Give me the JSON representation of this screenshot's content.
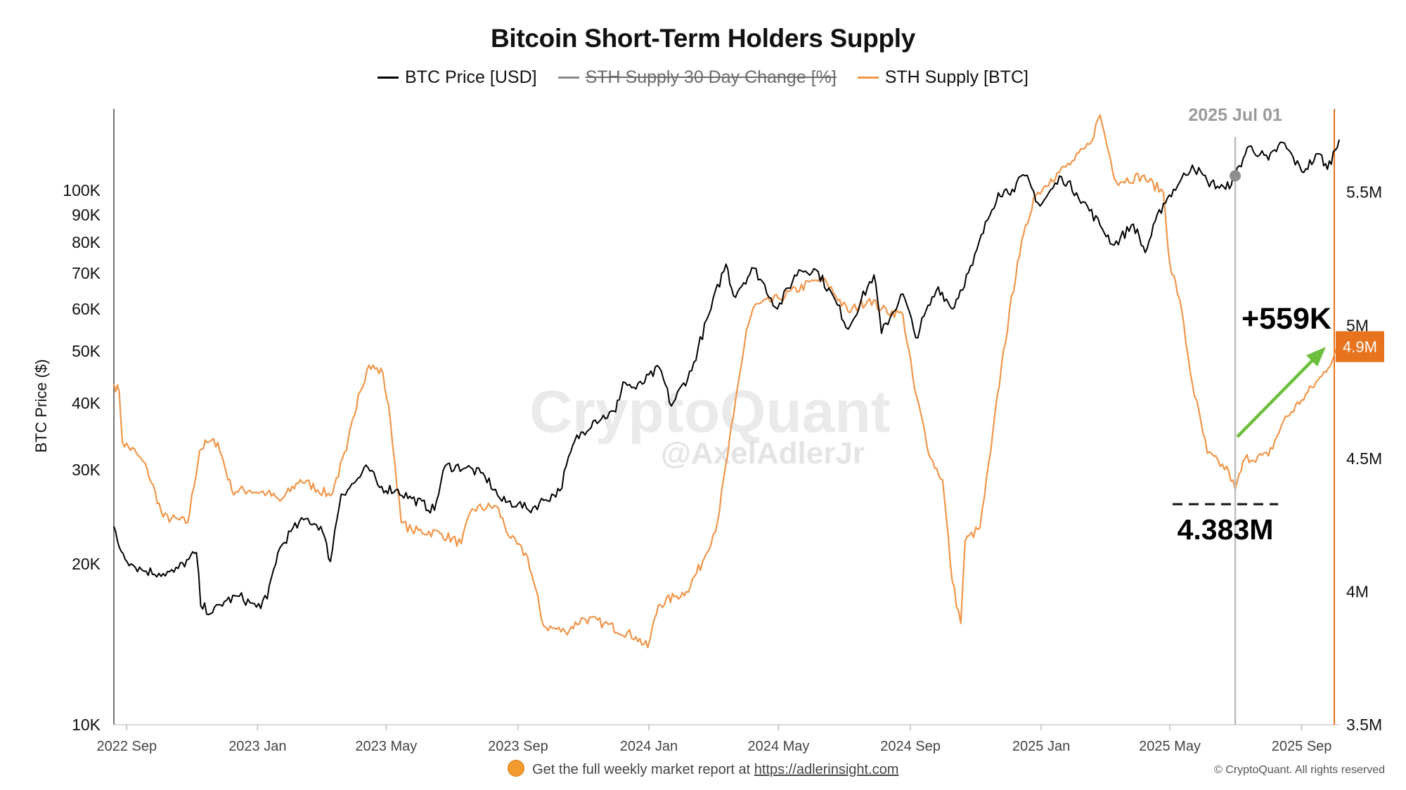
{
  "title": "Bitcoin Short-Term Holders Supply",
  "legend": [
    {
      "label": "BTC Price [USD]",
      "color": "#000000",
      "hidden": false
    },
    {
      "label": "STH Supply 30 Day Change [%]",
      "color": "#8a8a8a",
      "hidden": true
    },
    {
      "label": "STH Supply [BTC]",
      "color": "#f0964a",
      "hidden": false
    }
  ],
  "watermark": {
    "line1": "CryptoQuant",
    "line2": "@AxelAdlerJr"
  },
  "annotations": {
    "marker_date": "2025 Jul 01",
    "increase": "+559K",
    "low_value": "4.383M",
    "current_value": "4.9M"
  },
  "footer": {
    "text": "Get the full weekly market report at",
    "link": "https://adlerinsight.com"
  },
  "copyright": "© CryptoQuant. All rights reserved",
  "colors": {
    "price": "#000000",
    "supply": "#f0964a",
    "axis_right": "#e8731f",
    "arrow": "#6cbf3a",
    "marker": "#8e8e8e"
  },
  "chart_data": {
    "type": "line",
    "ylabel_left": "BTC Price ($)",
    "y_left_scale": "log",
    "y_left_range": [
      10000,
      140000
    ],
    "y_left_ticks": [
      {
        "v": 10000,
        "label": "10K"
      },
      {
        "v": 20000,
        "label": "20K"
      },
      {
        "v": 30000,
        "label": "30K"
      },
      {
        "v": 40000,
        "label": "40K"
      },
      {
        "v": 50000,
        "label": "50K"
      },
      {
        "v": 60000,
        "label": "60K"
      },
      {
        "v": 70000,
        "label": "70K"
      },
      {
        "v": 80000,
        "label": "80K"
      },
      {
        "v": 90000,
        "label": "90K"
      },
      {
        "v": 100000,
        "label": "100K"
      }
    ],
    "y_right_range": [
      3500000,
      5800000
    ],
    "y_right_ticks": [
      {
        "v": 3500000,
        "label": "3.5M"
      },
      {
        "v": 4000000,
        "label": "4M"
      },
      {
        "v": 4500000,
        "label": "4.5M"
      },
      {
        "v": 5000000,
        "label": "5M"
      },
      {
        "v": 5500000,
        "label": "5.5M"
      }
    ],
    "x_range": [
      "2022-08-20",
      "2025-10-06"
    ],
    "x_ticks": [
      {
        "date": "2022-09-01",
        "label": "2022 Sep"
      },
      {
        "date": "2023-01-01",
        "label": "2023 Jan"
      },
      {
        "date": "2023-05-01",
        "label": "2023 May"
      },
      {
        "date": "2023-09-01",
        "label": "2023 Sep"
      },
      {
        "date": "2024-01-01",
        "label": "2024 Jan"
      },
      {
        "date": "2024-05-01",
        "label": "2024 May"
      },
      {
        "date": "2024-09-01",
        "label": "2024 Sep"
      },
      {
        "date": "2025-01-01",
        "label": "2025 Jan"
      },
      {
        "date": "2025-05-01",
        "label": "2025 May"
      },
      {
        "date": "2025-09-01",
        "label": "2025 Sep"
      }
    ],
    "series": [
      {
        "name": "BTC Price [USD]",
        "axis": "left",
        "points": [
          [
            "2022-08-20",
            23500
          ],
          [
            "2022-08-25",
            21500
          ],
          [
            "2022-09-05",
            20000
          ],
          [
            "2022-09-15",
            19500
          ],
          [
            "2022-10-01",
            19200
          ],
          [
            "2022-10-15",
            19300
          ],
          [
            "2022-10-29",
            20400
          ],
          [
            "2022-11-05",
            21000
          ],
          [
            "2022-11-09",
            16700
          ],
          [
            "2022-11-20",
            16200
          ],
          [
            "2022-12-01",
            17000
          ],
          [
            "2022-12-15",
            17400
          ],
          [
            "2022-12-31",
            16600
          ],
          [
            "2023-01-10",
            17200
          ],
          [
            "2023-01-20",
            21000
          ],
          [
            "2023-02-01",
            23000
          ],
          [
            "2023-02-15",
            24300
          ],
          [
            "2023-03-01",
            23500
          ],
          [
            "2023-03-10",
            20200
          ],
          [
            "2023-03-20",
            27000
          ],
          [
            "2023-04-01",
            28300
          ],
          [
            "2023-04-14",
            30300
          ],
          [
            "2023-04-25",
            27800
          ],
          [
            "2023-05-10",
            27500
          ],
          [
            "2023-05-25",
            26500
          ],
          [
            "2023-06-15",
            25200
          ],
          [
            "2023-06-25",
            30500
          ],
          [
            "2023-07-15",
            30300
          ],
          [
            "2023-08-01",
            29200
          ],
          [
            "2023-08-17",
            26200
          ],
          [
            "2023-09-01",
            25900
          ],
          [
            "2023-09-11",
            25200
          ],
          [
            "2023-09-25",
            26300
          ],
          [
            "2023-10-10",
            27400
          ],
          [
            "2023-10-24",
            34000
          ],
          [
            "2023-11-10",
            37000
          ],
          [
            "2023-12-01",
            38500
          ],
          [
            "2023-12-08",
            43800
          ],
          [
            "2023-12-20",
            42500
          ],
          [
            "2024-01-11",
            46500
          ],
          [
            "2024-01-22",
            39500
          ],
          [
            "2024-02-10",
            46000
          ],
          [
            "2024-02-28",
            60000
          ],
          [
            "2024-03-13",
            72800
          ],
          [
            "2024-03-20",
            63500
          ],
          [
            "2024-04-08",
            71500
          ],
          [
            "2024-04-30",
            60000
          ],
          [
            "2024-05-20",
            71000
          ],
          [
            "2024-06-05",
            71000
          ],
          [
            "2024-06-25",
            61000
          ],
          [
            "2024-07-05",
            55000
          ],
          [
            "2024-07-29",
            69500
          ],
          [
            "2024-08-05",
            54000
          ],
          [
            "2024-08-25",
            64000
          ],
          [
            "2024-09-06",
            53000
          ],
          [
            "2024-09-27",
            66000
          ],
          [
            "2024-10-10",
            60000
          ],
          [
            "2024-10-29",
            72500
          ],
          [
            "2024-11-12",
            88000
          ],
          [
            "2024-11-22",
            99000
          ],
          [
            "2024-12-05",
            100500
          ],
          [
            "2024-12-17",
            106500
          ],
          [
            "2024-12-31",
            93500
          ],
          [
            "2025-01-20",
            106000
          ],
          [
            "2025-02-03",
            99000
          ],
          [
            "2025-02-25",
            86000
          ],
          [
            "2025-03-10",
            79000
          ],
          [
            "2025-03-28",
            86500
          ],
          [
            "2025-04-08",
            76500
          ],
          [
            "2025-04-25",
            94500
          ],
          [
            "2025-05-10",
            103500
          ],
          [
            "2025-05-22",
            111500
          ],
          [
            "2025-06-05",
            104000
          ],
          [
            "2025-06-22",
            100500
          ],
          [
            "2025-07-01",
            106500
          ],
          [
            "2025-07-14",
            121000
          ],
          [
            "2025-08-01",
            114000
          ],
          [
            "2025-08-14",
            123000
          ],
          [
            "2025-09-01",
            108500
          ],
          [
            "2025-09-18",
            117000
          ],
          [
            "2025-09-25",
            109500
          ],
          [
            "2025-10-06",
            124500
          ]
        ]
      },
      {
        "name": "STH Supply [BTC]",
        "axis": "right",
        "points": [
          [
            "2022-08-20",
            4780000
          ],
          [
            "2022-08-25",
            4750000
          ],
          [
            "2022-08-28",
            4560000
          ],
          [
            "2022-09-10",
            4520000
          ],
          [
            "2022-09-20",
            4460000
          ],
          [
            "2022-10-05",
            4280000
          ],
          [
            "2022-10-28",
            4260000
          ],
          [
            "2022-11-08",
            4530000
          ],
          [
            "2022-11-15",
            4560000
          ],
          [
            "2022-11-25",
            4560000
          ],
          [
            "2022-12-08",
            4380000
          ],
          [
            "2022-12-25",
            4380000
          ],
          [
            "2023-01-10",
            4370000
          ],
          [
            "2023-01-22",
            4340000
          ],
          [
            "2023-02-10",
            4420000
          ],
          [
            "2023-03-10",
            4360000
          ],
          [
            "2023-03-25",
            4530000
          ],
          [
            "2023-04-05",
            4740000
          ],
          [
            "2023-04-15",
            4850000
          ],
          [
            "2023-04-28",
            4820000
          ],
          [
            "2023-05-05",
            4640000
          ],
          [
            "2023-05-15",
            4260000
          ],
          [
            "2023-05-25",
            4230000
          ],
          [
            "2023-06-20",
            4220000
          ],
          [
            "2023-07-10",
            4180000
          ],
          [
            "2023-07-20",
            4310000
          ],
          [
            "2023-08-12",
            4320000
          ],
          [
            "2023-08-25",
            4200000
          ],
          [
            "2023-09-10",
            4130000
          ],
          [
            "2023-09-25",
            3870000
          ],
          [
            "2023-10-15",
            3850000
          ],
          [
            "2023-11-01",
            3900000
          ],
          [
            "2023-11-20",
            3880000
          ],
          [
            "2023-12-20",
            3830000
          ],
          [
            "2023-12-31",
            3790000
          ],
          [
            "2024-01-10",
            3950000
          ],
          [
            "2024-01-25",
            3980000
          ],
          [
            "2024-02-05",
            4000000
          ],
          [
            "2024-02-20",
            4110000
          ],
          [
            "2024-03-05",
            4260000
          ],
          [
            "2024-03-20",
            4660000
          ],
          [
            "2024-04-01",
            4980000
          ],
          [
            "2024-04-08",
            5070000
          ],
          [
            "2024-05-01",
            5100000
          ],
          [
            "2024-06-05",
            5170000
          ],
          [
            "2024-06-15",
            5160000
          ],
          [
            "2024-07-05",
            5050000
          ],
          [
            "2024-07-25",
            5100000
          ],
          [
            "2024-08-05",
            5060000
          ],
          [
            "2024-08-25",
            5040000
          ],
          [
            "2024-09-05",
            4760000
          ],
          [
            "2024-09-20",
            4500000
          ],
          [
            "2024-10-01",
            4420000
          ],
          [
            "2024-10-10",
            4040000
          ],
          [
            "2024-10-18",
            3880000
          ],
          [
            "2024-10-22",
            4190000
          ],
          [
            "2024-11-05",
            4240000
          ],
          [
            "2024-11-15",
            4530000
          ],
          [
            "2024-11-25",
            4850000
          ],
          [
            "2024-12-10",
            5240000
          ],
          [
            "2024-12-25",
            5480000
          ],
          [
            "2025-01-10",
            5550000
          ],
          [
            "2025-02-01",
            5620000
          ],
          [
            "2025-02-15",
            5680000
          ],
          [
            "2025-02-25",
            5790000
          ],
          [
            "2025-03-05",
            5650000
          ],
          [
            "2025-03-12",
            5540000
          ],
          [
            "2025-04-05",
            5560000
          ],
          [
            "2025-04-25",
            5500000
          ],
          [
            "2025-05-01",
            5230000
          ],
          [
            "2025-05-10",
            5100000
          ],
          [
            "2025-05-22",
            4780000
          ],
          [
            "2025-06-05",
            4520000
          ],
          [
            "2025-06-25",
            4450000
          ],
          [
            "2025-07-01",
            4383000
          ],
          [
            "2025-07-10",
            4500000
          ],
          [
            "2025-08-01",
            4510000
          ],
          [
            "2025-08-15",
            4640000
          ],
          [
            "2025-09-01",
            4720000
          ],
          [
            "2025-09-20",
            4810000
          ],
          [
            "2025-10-06",
            4920000
          ]
        ]
      }
    ]
  }
}
